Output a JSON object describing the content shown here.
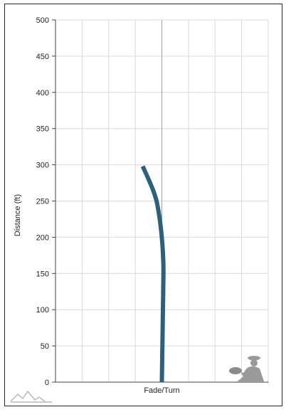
{
  "chart_data": {
    "type": "line",
    "title": "",
    "xlabel": "Fade/Turn",
    "ylabel": "Distance (ft)",
    "xlim": [
      -4,
      4
    ],
    "ylim": [
      0,
      500
    ],
    "y_ticks": [
      "0",
      "50",
      "100",
      "150",
      "200",
      "250",
      "300",
      "350",
      "400",
      "450",
      "500"
    ],
    "y_tick_values": [
      0,
      50,
      100,
      150,
      200,
      250,
      300,
      350,
      400,
      450,
      500
    ],
    "x_gridlines": [
      -4,
      -3,
      -2,
      -1,
      0,
      1,
      2,
      3,
      4
    ],
    "grid": true,
    "series": [
      {
        "color": "#2b6179",
        "points": [
          [
            0.0,
            0
          ],
          [
            0.02,
            50
          ],
          [
            0.04,
            100
          ],
          [
            0.06,
            150
          ],
          [
            0.05,
            170
          ],
          [
            0.02,
            190
          ],
          [
            -0.03,
            210
          ],
          [
            -0.1,
            230
          ],
          [
            -0.2,
            250
          ],
          [
            -0.33,
            265
          ],
          [
            -0.5,
            280
          ],
          [
            -0.72,
            298
          ]
        ]
      }
    ],
    "center_line_color": "#a0a0a0",
    "grid_color": "#d9d9d9"
  },
  "icons": {
    "player": "disc-thrower-icon",
    "logo": "mountain-logo-icon"
  }
}
